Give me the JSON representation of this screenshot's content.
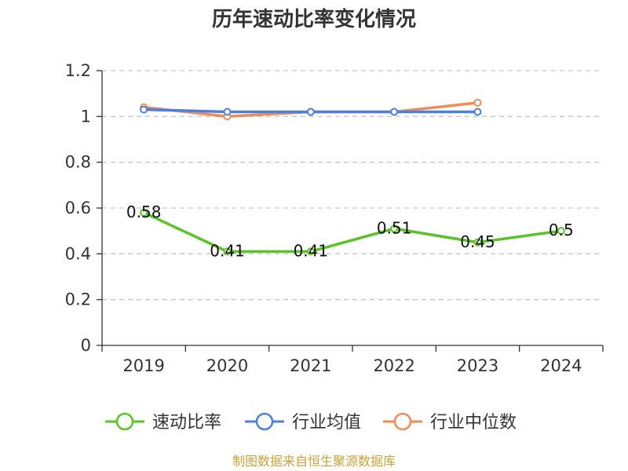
{
  "chart_data": {
    "type": "line",
    "title": "历年速动比率变化情况",
    "categories": [
      "2019",
      "2020",
      "2021",
      "2022",
      "2023",
      "2024"
    ],
    "ylim": [
      0,
      1.2
    ],
    "yticks": [
      "0",
      "0.2",
      "0.4",
      "0.6",
      "0.8",
      "1",
      "1.2"
    ],
    "grid": true,
    "legend_position": "bottom",
    "series": [
      {
        "name": "速动比率",
        "color": "#5cc22a",
        "values": [
          0.58,
          0.41,
          0.41,
          0.51,
          0.45,
          0.5
        ],
        "labels": [
          "0.58",
          "0.41",
          "0.41",
          "0.51",
          "0.45",
          "0.5"
        ]
      },
      {
        "name": "行业均值",
        "color": "#4d80d8",
        "values": [
          1.03,
          1.02,
          1.02,
          1.02,
          1.02,
          null
        ]
      },
      {
        "name": "行业中位数",
        "color": "#f08c5a",
        "values": [
          1.04,
          1.0,
          1.02,
          1.02,
          1.06,
          null
        ]
      }
    ]
  },
  "source_note": "制图数据来自恒生聚源数据库"
}
